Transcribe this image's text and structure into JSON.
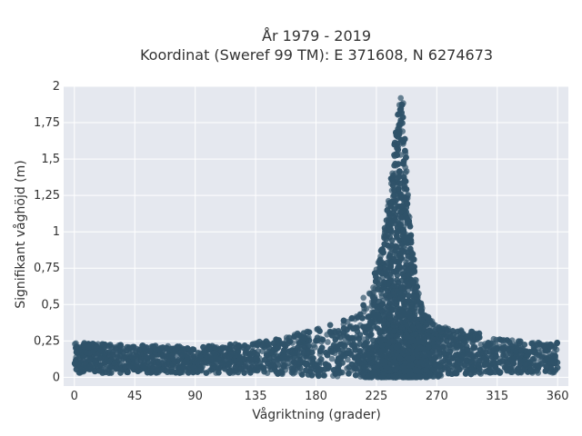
{
  "chart_data": {
    "type": "scatter",
    "title": "År 1979 - 2019",
    "subtitle": "Koordinat (Sweref 99 TM): E 371608, N 6274673",
    "xlabel": "Vågriktning (grader)",
    "ylabel": "Signifikant våghöjd (m)",
    "xlim": [
      -8,
      368
    ],
    "ylim": [
      -0.06,
      2.0
    ],
    "x_ticks": [
      0,
      45,
      90,
      135,
      180,
      225,
      270,
      315,
      360
    ],
    "x_tick_labels": [
      "0",
      "45",
      "90",
      "135",
      "180",
      "225",
      "270",
      "315",
      "360"
    ],
    "y_ticks": [
      0,
      0.25,
      0.5,
      0.75,
      1,
      1.25,
      1.5,
      1.75,
      2
    ],
    "y_tick_labels": [
      "0",
      "0,25",
      "0,5",
      "0,75",
      "1",
      "1,25",
      "1,5",
      "1,75",
      "2"
    ],
    "grid": true,
    "marker_color": "#2f5269",
    "plot_background": "#e5e8ef",
    "envelope": {
      "direction_deg": [
        0,
        45,
        90,
        135,
        150,
        165,
        180,
        195,
        210,
        220,
        230,
        235,
        240,
        243,
        245,
        250,
        255,
        260,
        270,
        285,
        300,
        315,
        330,
        345,
        360
      ],
      "max_height_m": [
        0.24,
        0.22,
        0.21,
        0.24,
        0.27,
        0.3,
        0.33,
        0.38,
        0.47,
        0.62,
        0.95,
        1.3,
        1.75,
        1.93,
        1.9,
        1.05,
        0.65,
        0.45,
        0.36,
        0.33,
        0.31,
        0.27,
        0.25,
        0.24,
        0.24
      ],
      "min_height_m": [
        0.03,
        0.03,
        0.03,
        0.03,
        0.02,
        0.02,
        0.0,
        0.0,
        0.0,
        0.0,
        0.0,
        0.0,
        0.0,
        0.0,
        0.0,
        0.0,
        0.0,
        0.0,
        0.0,
        0.02,
        0.02,
        0.03,
        0.03,
        0.03,
        0.03
      ]
    }
  }
}
